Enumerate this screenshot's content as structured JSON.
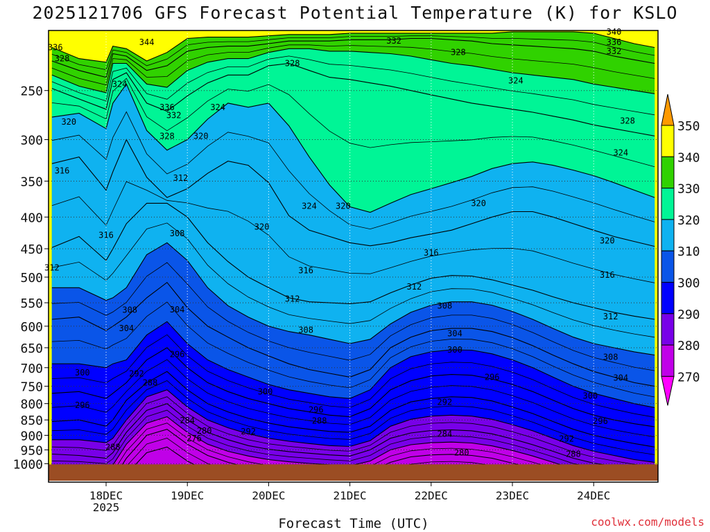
{
  "title": "2025121706 GFS Forecast Potential Temperature (K) for KSLO",
  "credit": "coolwx.com/models",
  "chart_data": {
    "type": "heatmap",
    "title": "2025121706 GFS Forecast Potential Temperature (K) for KSLO",
    "xlabel": "Forecast Time (UTC)",
    "ylabel": "",
    "x_ticks": [
      "18DEC",
      "19DEC",
      "20DEC",
      "21DEC",
      "22DEC",
      "23DEC",
      "24DEC"
    ],
    "x_tick_sub": "2025",
    "x_range_hours": [
      -17,
      163
    ],
    "y_ticks": [
      250,
      300,
      350,
      400,
      450,
      500,
      550,
      600,
      650,
      700,
      750,
      800,
      850,
      900,
      950,
      1000
    ],
    "y_range_hpa": [
      200,
      1012
    ],
    "y_scale": "log-pressure (inverted)",
    "grid": true,
    "colorbar": {
      "levels": [
        270,
        280,
        290,
        300,
        310,
        320,
        330,
        340,
        350
      ],
      "colors": [
        "#ff00ff",
        "#c000e8",
        "#7800e8",
        "#0000ff",
        "#0a55e8",
        "#0fb2f0",
        "#00f596",
        "#30d200",
        "#ffff00",
        "#ff9a00"
      ],
      "position": "right"
    },
    "ground_color": "#9b4d23",
    "times_hours": [
      -16,
      -8,
      0,
      2,
      6,
      12,
      18,
      24,
      30,
      36,
      42,
      48,
      54,
      60,
      66,
      72,
      78,
      84,
      90,
      96,
      102,
      108,
      114,
      120,
      126,
      132,
      138,
      144,
      150,
      156,
      162
    ],
    "series": [
      {
        "theta": 336,
        "p": [
          213,
          222,
          225,
          212,
          214,
          224,
          217,
          206,
          205,
          205,
          205,
          204,
          203,
          203,
          203,
          202,
          202,
          202,
          202,
          202,
          202,
          202,
          202,
          201,
          201,
          201,
          201,
          202,
          206,
          210,
          213
        ]
      },
      {
        "theta": 332,
        "p": [
          224,
          232,
          238,
          218,
          220,
          232,
          228,
          216,
          213,
          212,
          212,
          210,
          208,
          208,
          208,
          207,
          207,
          207,
          206,
          206,
          207,
          208,
          210,
          211,
          212,
          213,
          214,
          216,
          220,
          223,
          226
        ]
      },
      {
        "theta": 328,
        "p": [
          236,
          246,
          252,
          226,
          226,
          244,
          247,
          232,
          225,
          222,
          222,
          217,
          214,
          214,
          216,
          216,
          217,
          218,
          220,
          223,
          226,
          228,
          231,
          234,
          236,
          238,
          240,
          244,
          247,
          250,
          253
        ]
      },
      {
        "theta": 324,
        "p": [
          248,
          258,
          268,
          240,
          234,
          262,
          270,
          255,
          243,
          236,
          236,
          228,
          226,
          232,
          238,
          240,
          243,
          246,
          250,
          254,
          258,
          262,
          265,
          268,
          271,
          275,
          279,
          284,
          288,
          292,
          296
        ]
      },
      {
        "theta": 320,
        "p": [
          276,
          272,
          288,
          262,
          244,
          290,
          312,
          300,
          278,
          262,
          266,
          262,
          285,
          320,
          355,
          385,
          393,
          380,
          368,
          360,
          352,
          344,
          334,
          328,
          326,
          330,
          336,
          343,
          352,
          362,
          372
        ]
      },
      {
        "theta": 316,
        "p": [
          328,
          320,
          362,
          338,
          300,
          345,
          372,
          360,
          340,
          325,
          330,
          352,
          398,
          420,
          430,
          440,
          445,
          440,
          432,
          426,
          420,
          410,
          400,
          392,
          392,
          400,
          410,
          420,
          430,
          438,
          446
        ]
      },
      {
        "theta": 312,
        "p": [
          448,
          430,
          470,
          450,
          410,
          380,
          380,
          400,
          440,
          472,
          500,
          520,
          540,
          548,
          550,
          552,
          548,
          530,
          515,
          502,
          497,
          498,
          505,
          515,
          525,
          538,
          550,
          560,
          570,
          578,
          585
        ]
      },
      {
        "theta": 308,
        "p": [
          520,
          520,
          545,
          540,
          520,
          460,
          440,
          470,
          520,
          556,
          580,
          600,
          612,
          620,
          630,
          640,
          630,
          595,
          570,
          555,
          548,
          548,
          555,
          568,
          585,
          605,
          625,
          640,
          650,
          660,
          668
        ]
      },
      {
        "theta": 304,
        "p": [
          585,
          580,
          610,
          600,
          580,
          540,
          510,
          560,
          600,
          625,
          650,
          670,
          690,
          705,
          715,
          725,
          705,
          650,
          625,
          610,
          605,
          605,
          612,
          626,
          645,
          668,
          690,
          710,
          725,
          740,
          750
        ]
      },
      {
        "theta": 300,
        "p": [
          690,
          690,
          700,
          690,
          680,
          620,
          590,
          640,
          680,
          705,
          725,
          745,
          760,
          770,
          780,
          785,
          760,
          700,
          672,
          660,
          655,
          656,
          665,
          680,
          700,
          725,
          750,
          770,
          785,
          800,
          812
        ]
      },
      {
        "theta": 296,
        "p": [
          770,
          765,
          785,
          770,
          740,
          680,
          650,
          700,
          740,
          765,
          785,
          800,
          815,
          825,
          835,
          840,
          815,
          760,
          735,
          722,
          718,
          720,
          730,
          745,
          765,
          790,
          815,
          835,
          850,
          862,
          872
        ]
      },
      {
        "theta": 292,
        "p": [
          855,
          850,
          870,
          850,
          790,
          740,
          710,
          760,
          800,
          825,
          845,
          860,
          872,
          880,
          887,
          890,
          870,
          820,
          795,
          785,
          780,
          782,
          792,
          810,
          830,
          855,
          880,
          900,
          915,
          928,
          940
        ]
      },
      {
        "theta": 288,
        "p": [
          915,
          915,
          925,
          910,
          850,
          780,
          760,
          810,
          850,
          875,
          895,
          910,
          920,
          928,
          935,
          938,
          918,
          870,
          848,
          838,
          835,
          838,
          848,
          865,
          885,
          910,
          935,
          955,
          970,
          985,
          995
        ]
      },
      {
        "theta": 284,
        "p": [
          965,
          970,
          980,
          960,
          890,
          820,
          800,
          850,
          890,
          915,
          935,
          948,
          956,
          962,
          968,
          972,
          950,
          910,
          892,
          884,
          882,
          885,
          895,
          912,
          932,
          955,
          980,
          998,
          1010,
          1020,
          1030
        ]
      },
      {
        "theta": 280,
        "p": [
          1015,
          1015,
          1020,
          1005,
          930,
          860,
          840,
          890,
          930,
          955,
          972,
          985,
          993,
          999,
          1004,
          1008,
          990,
          950,
          932,
          925,
          923,
          926,
          936,
          952,
          972,
          995,
          1020,
          1030,
          1040,
          1050,
          1060
        ]
      },
      {
        "theta": 276,
        "p": [
          1060,
          1060,
          1060,
          1060,
          980,
          900,
          880,
          930,
          970,
          995,
          1015,
          1030,
          1040,
          1048,
          1055,
          1060,
          1030,
          995,
          975,
          968,
          966,
          970,
          980,
          998,
          1018,
          1040,
          1060,
          1070,
          1080,
          1090,
          1100
        ]
      },
      {
        "theta": 272,
        "p": [
          1100,
          1100,
          1100,
          1100,
          1040,
          960,
          940,
          990,
          1030,
          1060,
          1080,
          1090,
          1100,
          1100,
          1100,
          1100,
          1090,
          1050,
          1030,
          1020,
          1018,
          1022,
          1035,
          1055,
          1075,
          1090,
          1100,
          1110,
          1120,
          1130,
          1140
        ]
      }
    ],
    "contour_labels": [
      {
        "text": "336",
        "t": -15,
        "p": 213
      },
      {
        "text": "328",
        "t": -13,
        "p": 222
      },
      {
        "text": "344",
        "t": 12,
        "p": 209
      },
      {
        "text": "328",
        "t": 55,
        "p": 226
      },
      {
        "text": "332",
        "t": 85,
        "p": 208
      },
      {
        "text": "328",
        "t": 104,
        "p": 217
      },
      {
        "text": "340",
        "t": 150,
        "p": 201
      },
      {
        "text": "336",
        "t": 150,
        "p": 209
      },
      {
        "text": "332",
        "t": 150,
        "p": 216
      },
      {
        "text": "324",
        "t": 4,
        "p": 244
      },
      {
        "text": "324",
        "t": 121,
        "p": 241
      },
      {
        "text": "336",
        "t": 18,
        "p": 266
      },
      {
        "text": "332",
        "t": 20,
        "p": 274
      },
      {
        "text": "324",
        "t": 33,
        "p": 266
      },
      {
        "text": "320",
        "t": -11,
        "p": 281
      },
      {
        "text": "328",
        "t": 18,
        "p": 296
      },
      {
        "text": "320",
        "t": 28,
        "p": 296
      },
      {
        "text": "328",
        "t": 154,
        "p": 280
      },
      {
        "text": "324",
        "t": 152,
        "p": 315
      },
      {
        "text": "316",
        "t": -13,
        "p": 337
      },
      {
        "text": "312",
        "t": 22,
        "p": 346
      },
      {
        "text": "324",
        "t": 60,
        "p": 384
      },
      {
        "text": "320",
        "t": 70,
        "p": 384
      },
      {
        "text": "320",
        "t": 110,
        "p": 380
      },
      {
        "text": "320",
        "t": 46,
        "p": 415
      },
      {
        "text": "316",
        "t": 0,
        "p": 428
      },
      {
        "text": "308",
        "t": 21,
        "p": 425
      },
      {
        "text": "320",
        "t": 148,
        "p": 437
      },
      {
        "text": "316",
        "t": 96,
        "p": 457
      },
      {
        "text": "312",
        "t": -16,
        "p": 483
      },
      {
        "text": "316",
        "t": 59,
        "p": 488
      },
      {
        "text": "316",
        "t": 148,
        "p": 496
      },
      {
        "text": "312",
        "t": 91,
        "p": 518
      },
      {
        "text": "312",
        "t": 55,
        "p": 542
      },
      {
        "text": "308",
        "t": 100,
        "p": 556
      },
      {
        "text": "308",
        "t": 7,
        "p": 565
      },
      {
        "text": "304",
        "t": 21,
        "p": 564
      },
      {
        "text": "312",
        "t": 149,
        "p": 579
      },
      {
        "text": "304",
        "t": 6,
        "p": 605
      },
      {
        "text": "308",
        "t": 59,
        "p": 609
      },
      {
        "text": "304",
        "t": 103,
        "p": 617
      },
      {
        "text": "300",
        "t": 103,
        "p": 655
      },
      {
        "text": "296",
        "t": 21,
        "p": 666
      },
      {
        "text": "308",
        "t": 149,
        "p": 673
      },
      {
        "text": "300",
        "t": -7,
        "p": 713
      },
      {
        "text": "292",
        "t": 9,
        "p": 716
      },
      {
        "text": "296",
        "t": 114,
        "p": 725
      },
      {
        "text": "288",
        "t": 13,
        "p": 740
      },
      {
        "text": "304",
        "t": 152,
        "p": 727
      },
      {
        "text": "300",
        "t": 47,
        "p": 765
      },
      {
        "text": "300",
        "t": 143,
        "p": 777
      },
      {
        "text": "296",
        "t": -7,
        "p": 805
      },
      {
        "text": "292",
        "t": 100,
        "p": 796
      },
      {
        "text": "296",
        "t": 62,
        "p": 818
      },
      {
        "text": "284",
        "t": 24,
        "p": 852
      },
      {
        "text": "288",
        "t": 63,
        "p": 853
      },
      {
        "text": "296",
        "t": 146,
        "p": 854
      },
      {
        "text": "280",
        "t": 29,
        "p": 885
      },
      {
        "text": "292",
        "t": 42,
        "p": 888
      },
      {
        "text": "284",
        "t": 100,
        "p": 895
      },
      {
        "text": "276",
        "t": 26,
        "p": 911
      },
      {
        "text": "292",
        "t": -25,
        "p": 892
      },
      {
        "text": "288",
        "t": 2,
        "p": 940
      },
      {
        "text": "292",
        "t": 136,
        "p": 912
      },
      {
        "text": "280",
        "t": 105,
        "p": 960
      },
      {
        "text": "288",
        "t": 138,
        "p": 965
      }
    ]
  }
}
